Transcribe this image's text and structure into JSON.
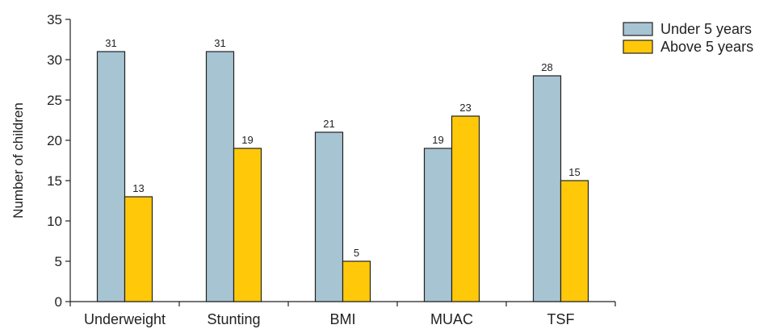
{
  "chart_data": {
    "type": "bar",
    "title": "",
    "xlabel": "",
    "ylabel": "Number of children",
    "ylim": [
      0,
      35
    ],
    "yticks": [
      0,
      5,
      10,
      15,
      20,
      25,
      30,
      35
    ],
    "categories": [
      "Underweight",
      "Stunting",
      "BMI",
      "MUAC",
      "TSF"
    ],
    "series": [
      {
        "name": "Under 5 years",
        "color": "#a7c4d3",
        "values": [
          31,
          31,
          21,
          19,
          28
        ]
      },
      {
        "name": "Above 5 years",
        "color": "#ffc90a",
        "values": [
          13,
          19,
          5,
          23,
          15
        ]
      }
    ],
    "data_labels": true,
    "grid": false,
    "legend": "top-right"
  }
}
